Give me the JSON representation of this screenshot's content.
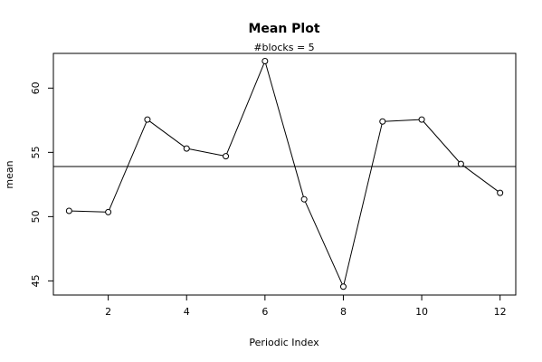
{
  "chart_data": {
    "type": "line",
    "title": "Mean Plot",
    "subtitle": "#blocks =  5",
    "xlabel": "Periodic Index",
    "ylabel": "mean",
    "xlim": [
      0.6,
      12.4
    ],
    "ylim": [
      43.9,
      62.7
    ],
    "x_ticks": [
      2,
      4,
      6,
      8,
      10,
      12
    ],
    "y_ticks": [
      45,
      50,
      55,
      60
    ],
    "x": [
      1,
      2,
      3,
      4,
      5,
      6,
      7,
      8,
      9,
      10,
      11,
      12
    ],
    "series": [
      {
        "values": [
          50.45,
          50.35,
          57.55,
          55.3,
          54.7,
          62.1,
          51.35,
          44.55,
          57.4,
          57.55,
          54.1,
          51.85
        ]
      }
    ],
    "reference_line": {
      "y": 53.9
    },
    "grid": false,
    "marker": "open-circle"
  }
}
